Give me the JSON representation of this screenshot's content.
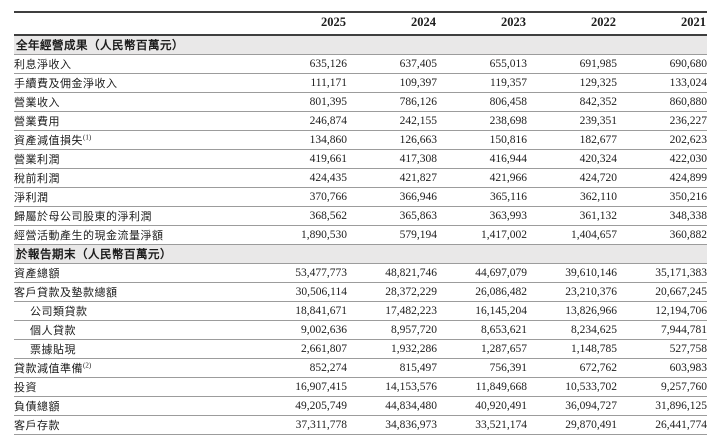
{
  "colors": {
    "text": "#1c1c1c",
    "band": "#e9e8e8",
    "rule_dark": "#3f3f3f",
    "rule_light": "#9c9c9c"
  },
  "table": {
    "years": [
      "2025",
      "2024",
      "2023",
      "2022",
      "2021"
    ],
    "sections": [
      {
        "header": "全年經營成果（人民幣百萬元）",
        "rows": [
          {
            "label": "利息淨收入",
            "sup": "",
            "indent": false,
            "values": [
              "635,126",
              "637,405",
              "655,013",
              "691,985",
              "690,680"
            ]
          },
          {
            "label": "手續費及佣金淨收入",
            "sup": "",
            "indent": false,
            "values": [
              "111,171",
              "109,397",
              "119,357",
              "129,325",
              "133,024"
            ]
          },
          {
            "label": "營業收入",
            "sup": "",
            "indent": false,
            "values": [
              "801,395",
              "786,126",
              "806,458",
              "842,352",
              "860,880"
            ]
          },
          {
            "label": "營業費用",
            "sup": "",
            "indent": false,
            "values": [
              "246,874",
              "242,155",
              "238,698",
              "239,351",
              "236,227"
            ]
          },
          {
            "label": "資產減值損失",
            "sup": "(1)",
            "indent": false,
            "values": [
              "134,860",
              "126,663",
              "150,816",
              "182,677",
              "202,623"
            ]
          },
          {
            "label": "營業利潤",
            "sup": "",
            "indent": false,
            "values": [
              "419,661",
              "417,308",
              "416,944",
              "420,324",
              "422,030"
            ]
          },
          {
            "label": "稅前利潤",
            "sup": "",
            "indent": false,
            "values": [
              "424,435",
              "421,827",
              "421,966",
              "424,720",
              "424,899"
            ]
          },
          {
            "label": "淨利潤",
            "sup": "",
            "indent": false,
            "values": [
              "370,766",
              "366,946",
              "365,116",
              "362,110",
              "350,216"
            ]
          },
          {
            "label": "歸屬於母公司股東的淨利潤",
            "sup": "",
            "indent": false,
            "values": [
              "368,562",
              "365,863",
              "363,993",
              "361,132",
              "348,338"
            ]
          },
          {
            "label": "經營活動產生的現金流量淨額",
            "sup": "",
            "indent": false,
            "values": [
              "1,890,530",
              "579,194",
              "1,417,002",
              "1,404,657",
              "360,882"
            ]
          }
        ]
      },
      {
        "header": "於報告期末（人民幣百萬元）",
        "rows": [
          {
            "label": "資產總額",
            "sup": "",
            "indent": false,
            "values": [
              "53,477,773",
              "48,821,746",
              "44,697,079",
              "39,610,146",
              "35,171,383"
            ]
          },
          {
            "label": "客戶貸款及墊款總額",
            "sup": "",
            "indent": false,
            "values": [
              "30,506,114",
              "28,372,229",
              "26,086,482",
              "23,210,376",
              "20,667,245"
            ]
          },
          {
            "label": "公司類貸款",
            "sup": "",
            "indent": true,
            "values": [
              "18,841,671",
              "17,482,223",
              "16,145,204",
              "13,826,966",
              "12,194,706"
            ]
          },
          {
            "label": "個人貸款",
            "sup": "",
            "indent": true,
            "values": [
              "9,002,636",
              "8,957,720",
              "8,653,621",
              "8,234,625",
              "7,944,781"
            ]
          },
          {
            "label": "票據貼現",
            "sup": "",
            "indent": true,
            "values": [
              "2,661,807",
              "1,932,286",
              "1,287,657",
              "1,148,785",
              "527,758"
            ]
          },
          {
            "label": "貸款減值準備",
            "sup": "(2)",
            "indent": false,
            "values": [
              "852,274",
              "815,497",
              "756,391",
              "672,762",
              "603,983"
            ]
          },
          {
            "label": "投資",
            "sup": "",
            "indent": false,
            "values": [
              "16,907,415",
              "14,153,576",
              "11,849,668",
              "10,533,702",
              "9,257,760"
            ]
          },
          {
            "label": "負債總額",
            "sup": "",
            "indent": false,
            "values": [
              "49,205,749",
              "44,834,480",
              "40,920,491",
              "36,094,727",
              "31,896,125"
            ]
          },
          {
            "label": "客戶存款",
            "sup": "",
            "indent": false,
            "values": [
              "37,311,778",
              "34,836,973",
              "33,521,174",
              "29,870,491",
              "26,441,774"
            ]
          }
        ]
      }
    ]
  }
}
